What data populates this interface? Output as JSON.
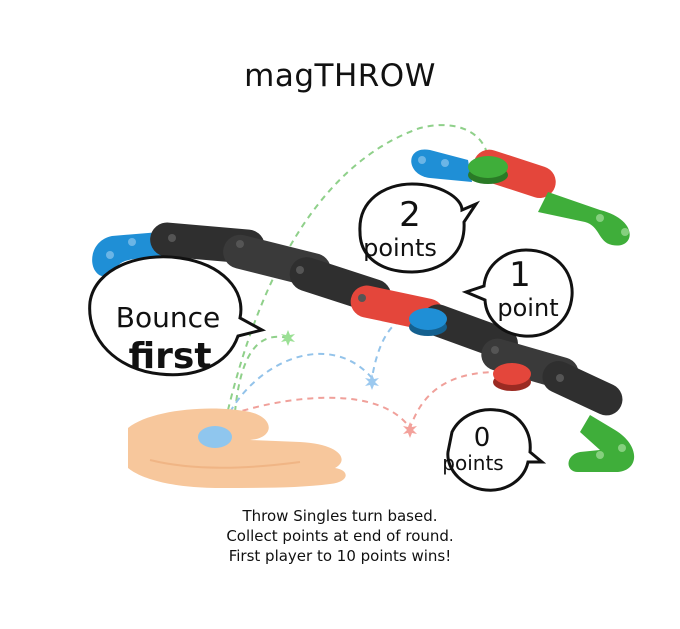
{
  "title": "magTHROW",
  "callouts": {
    "bounce": {
      "line1": "Bounce",
      "line2": "first"
    },
    "two": {
      "number": "2",
      "unit": "points"
    },
    "one": {
      "number": "1",
      "unit": "point"
    },
    "zero": {
      "number": "0",
      "unit": "points"
    }
  },
  "rules": [
    "Throw Singles turn based.",
    "Collect points at end of round.",
    "First player to 10 points wins!"
  ],
  "colors": {
    "blue": "#1f8fd6",
    "red": "#e4463b",
    "green": "#3fae3a",
    "black": "#2f2f2f",
    "skin": "#f7c79c"
  }
}
